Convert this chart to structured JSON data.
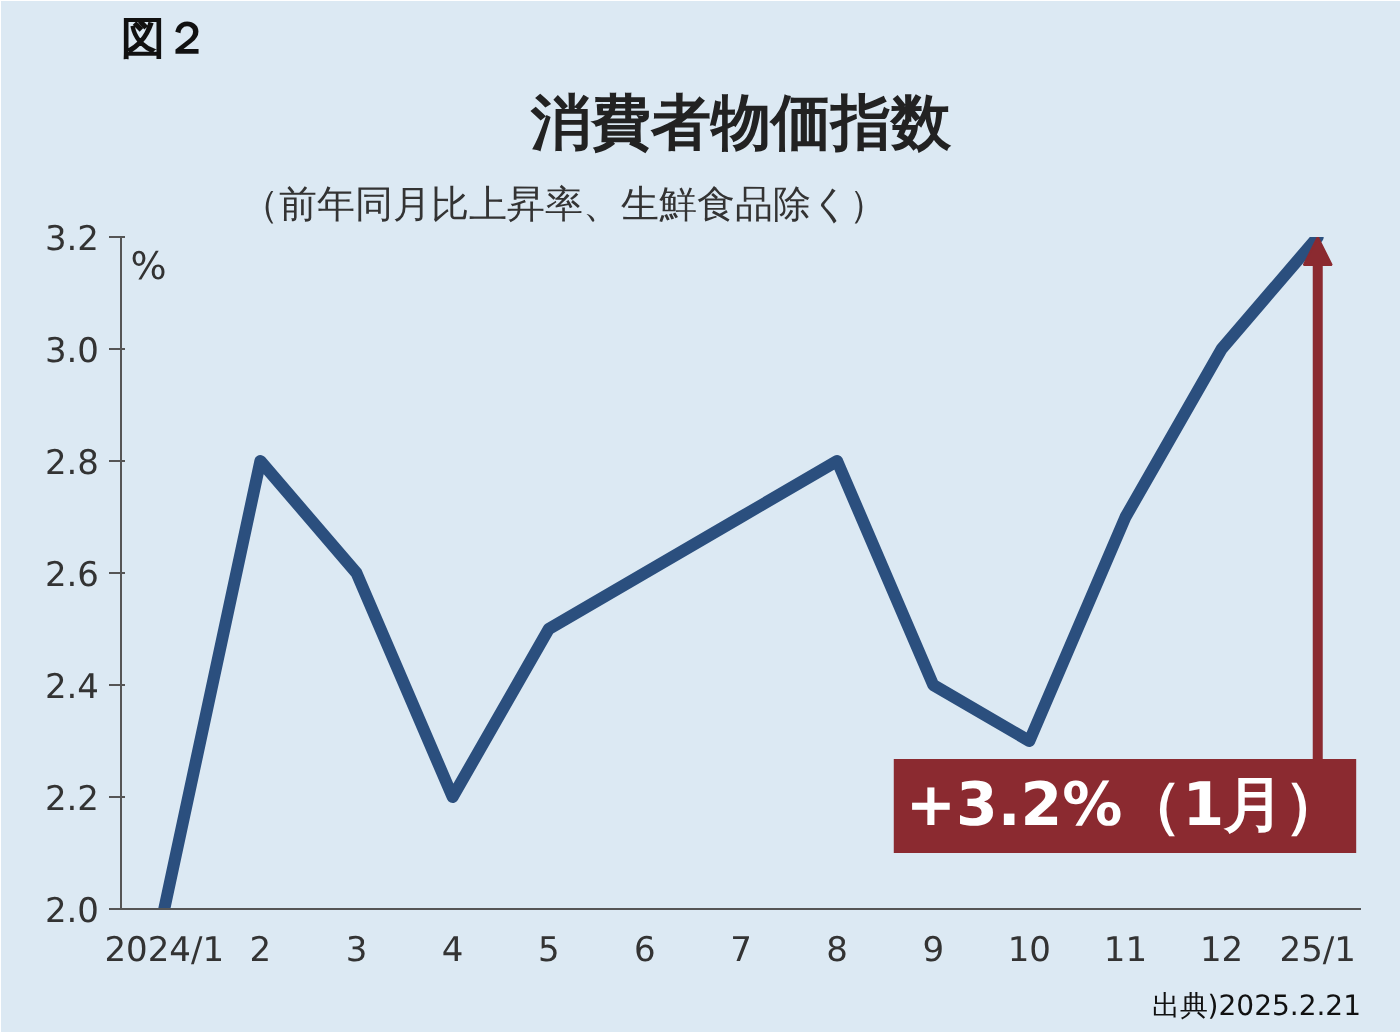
{
  "chart_data": {
    "type": "line",
    "title": "消費者物価指数",
    "subtitle": "（前年同月比上昇率、生鮮食品除く）",
    "ylabel": "%",
    "categories": [
      "2024/1",
      "2",
      "3",
      "4",
      "5",
      "6",
      "7",
      "8",
      "9",
      "10",
      "11",
      "12",
      "25/1"
    ],
    "series": [
      {
        "color": "#2b4f7e",
        "values": [
          2.0,
          2.8,
          2.6,
          2.2,
          2.5,
          2.6,
          2.7,
          2.8,
          2.4,
          2.3,
          2.7,
          3.0,
          3.2
        ]
      }
    ],
    "ylim": [
      2.0,
      3.2
    ],
    "yticks": [
      {
        "value": 2.0,
        "label": "2.0"
      },
      {
        "value": 2.2,
        "label": "2.2"
      },
      {
        "value": 2.4,
        "label": "2.4"
      },
      {
        "value": 2.6,
        "label": "2.6"
      },
      {
        "value": 2.8,
        "label": "2.8"
      },
      {
        "value": 3.0,
        "label": "3.0"
      },
      {
        "value": 3.2,
        "label": "3.2"
      }
    ],
    "grid": false,
    "marker": "none",
    "annotations": [
      "図２",
      "出典)2025.2.21",
      {
        "text": "+3.2%（1月）",
        "x": "25/1",
        "y": 3.2
      }
    ]
  }
}
